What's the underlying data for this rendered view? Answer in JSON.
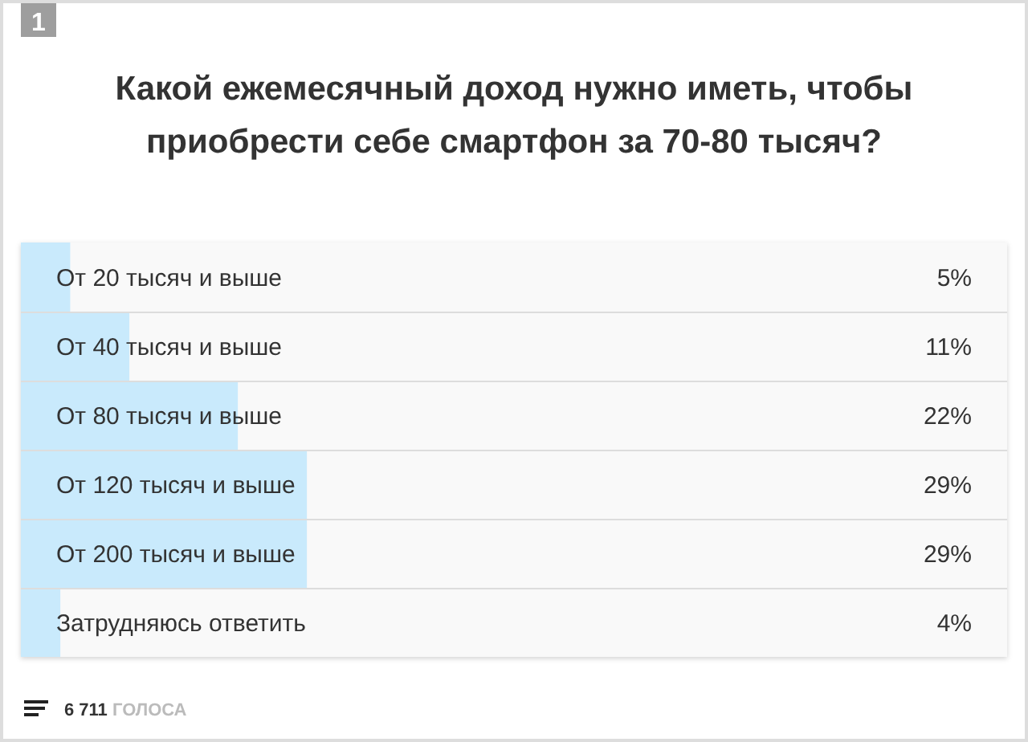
{
  "chart_data": {
    "type": "bar",
    "orientation": "horizontal",
    "title": "Какой ежемесячный доход нужно иметь, чтобы приобрести себе смартфон за 70-80 тысяч?",
    "categories": [
      "От 20 тысяч и выше",
      "От 40 тысяч и выше",
      "От 80 тысяч и выше",
      "От 120 тысяч и выше",
      "От 200 тысяч и выше",
      "Затрудняюсь ответить"
    ],
    "values": [
      5,
      11,
      22,
      29,
      29,
      4
    ],
    "value_labels": [
      "5%",
      "11%",
      "22%",
      "29%",
      "29%",
      "4%"
    ],
    "color": "#c9eafc",
    "xlim": [
      0,
      100
    ],
    "tick_labels": false,
    "annotations": [
      "1",
      "6 711 ГОЛОСА"
    ]
  }
}
